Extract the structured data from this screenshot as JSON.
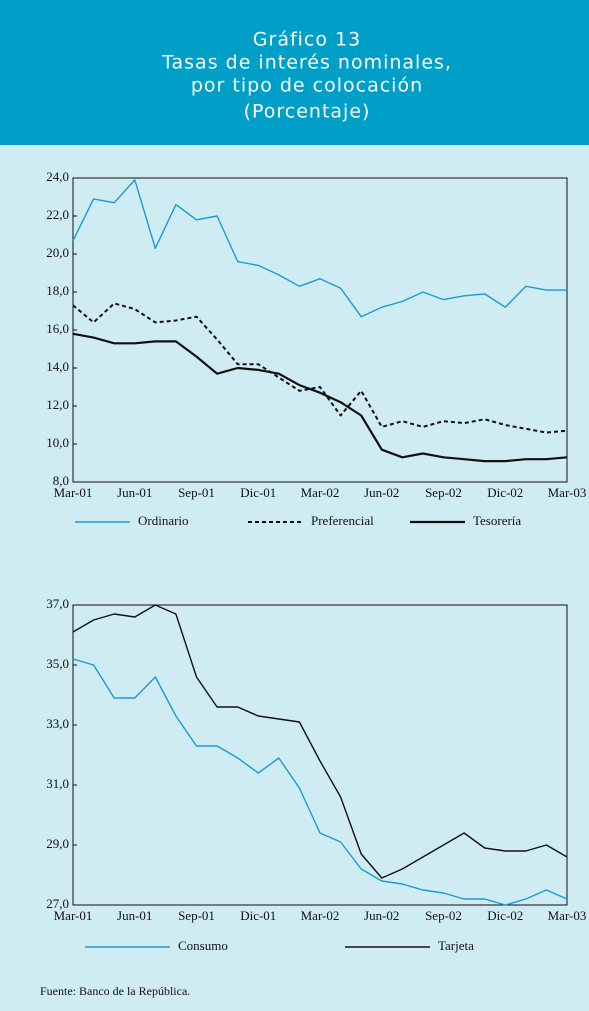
{
  "header": {
    "title_lines": [
      "Gráfico 13",
      "Tasas de interés nominales,",
      "por tipo de colocación",
      "(Porcentaje)"
    ]
  },
  "chart_data": [
    {
      "type": "line",
      "categories": [
        "Mar-01",
        null,
        null,
        "Jun-01",
        null,
        null,
        "Sep-01",
        null,
        null,
        "Dic-01",
        null,
        null,
        "Mar-02",
        null,
        null,
        "Jun-02",
        null,
        null,
        "Sep-02",
        null,
        null,
        "Dic-02",
        null,
        null,
        "Mar-03"
      ],
      "ylim": [
        8.0,
        24.0
      ],
      "yticks": [
        {
          "value": 8,
          "label": "8,0"
        },
        {
          "value": 10,
          "label": "10,0"
        },
        {
          "value": 12,
          "label": "12,0"
        },
        {
          "value": 14,
          "label": "14,0"
        },
        {
          "value": 16,
          "label": "16,0"
        },
        {
          "value": 18,
          "label": "18,0"
        },
        {
          "value": 20,
          "label": "20,0"
        },
        {
          "value": 22,
          "label": "22,0"
        },
        {
          "value": 24,
          "label": "24,0"
        }
      ],
      "series": [
        {
          "name": "Ordinario",
          "color": "#1a9ad6",
          "style": "solid",
          "values": [
            20.7,
            22.9,
            22.7,
            23.9,
            20.3,
            22.6,
            21.8,
            22.0,
            19.6,
            19.4,
            18.9,
            18.3,
            18.7,
            18.2,
            16.7,
            17.2,
            17.5,
            18.0,
            17.6,
            17.8,
            17.9,
            17.2,
            18.3,
            18.1,
            18.1
          ]
        },
        {
          "name": "Preferencial",
          "color": "#111111",
          "style": "dashed",
          "values": [
            17.3,
            16.4,
            17.4,
            17.1,
            16.4,
            16.5,
            16.7,
            15.5,
            14.2,
            14.2,
            13.5,
            12.8,
            13.0,
            11.5,
            12.8,
            10.9,
            11.2,
            10.9,
            11.2,
            11.1,
            11.3,
            11.0,
            10.8,
            10.6,
            10.7
          ]
        },
        {
          "name": "Tesorería",
          "color": "#111111",
          "style": "thick",
          "values": [
            15.8,
            15.6,
            15.3,
            15.3,
            15.4,
            15.4,
            14.6,
            13.7,
            14.0,
            13.9,
            13.7,
            13.1,
            12.7,
            12.2,
            11.5,
            9.7,
            9.3,
            9.5,
            9.3,
            9.2,
            9.1,
            9.1,
            9.2,
            9.2,
            9.3
          ]
        }
      ]
    },
    {
      "type": "line",
      "categories": [
        "Mar-01",
        null,
        null,
        "Jun-01",
        null,
        null,
        "Sep-01",
        null,
        null,
        "Dic-01",
        null,
        null,
        "Mar-02",
        null,
        null,
        "Jun-02",
        null,
        null,
        "Sep-02",
        null,
        null,
        "Dic-02",
        null,
        null,
        "Mar-03"
      ],
      "ylim": [
        27.0,
        37.0
      ],
      "yticks": [
        {
          "value": 27,
          "label": "27,0"
        },
        {
          "value": 29,
          "label": "29,0"
        },
        {
          "value": 31,
          "label": "31,0"
        },
        {
          "value": 33,
          "label": "33,0"
        },
        {
          "value": 35,
          "label": "35,0"
        },
        {
          "value": 37,
          "label": "37,0"
        }
      ],
      "series": [
        {
          "name": "Consumo",
          "color": "#1a9ad6",
          "style": "solid",
          "values": [
            35.2,
            35.0,
            33.9,
            33.9,
            34.6,
            33.3,
            32.3,
            32.3,
            31.9,
            31.4,
            31.9,
            30.9,
            29.4,
            29.1,
            28.2,
            27.8,
            27.7,
            27.5,
            27.4,
            27.2,
            27.2,
            27.0,
            27.2,
            27.5,
            27.2
          ]
        },
        {
          "name": "Tarjeta",
          "color": "#111111",
          "style": "solid",
          "values": [
            36.1,
            36.5,
            36.7,
            36.6,
            37.0,
            36.7,
            34.6,
            33.6,
            33.6,
            33.3,
            33.2,
            33.1,
            31.8,
            30.6,
            28.7,
            27.9,
            28.2,
            28.6,
            29.0,
            29.4,
            28.9,
            28.8,
            28.8,
            29.0,
            28.6
          ]
        }
      ]
    }
  ],
  "source": "Fuente: Banco de la República."
}
